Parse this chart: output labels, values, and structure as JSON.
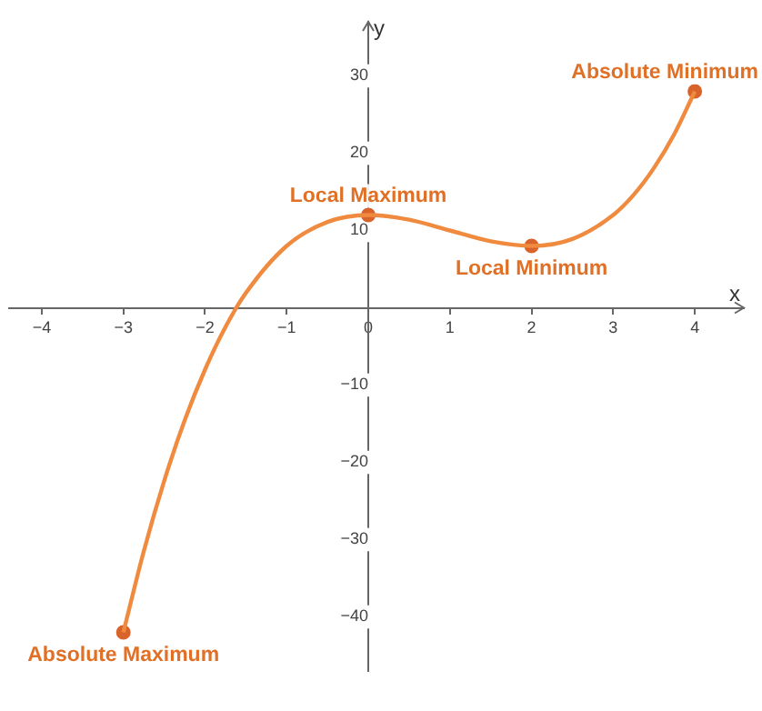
{
  "chart_data": {
    "type": "line",
    "xlabel": "x",
    "ylabel": "y",
    "series": [
      {
        "type": "line",
        "color": "#ef8a3e",
        "marker": "none",
        "x": [
          -3,
          -2.75,
          -2.5,
          -2.25,
          -2,
          -1.75,
          -1.5,
          -1,
          -0.5,
          0,
          0.5,
          1,
          1.5,
          2,
          2.5,
          3,
          3.25,
          3.5,
          3.75,
          4
        ],
        "values": [
          -42,
          -31.5,
          -22.4,
          -14.6,
          -8,
          -2.5,
          1.9,
          8,
          11.1,
          12,
          11.4,
          10,
          8.6,
          8,
          8.9,
          12,
          14.6,
          18.1,
          22.5,
          28
        ]
      },
      {
        "type": "scatter",
        "color": "#d9642b",
        "marker": "circle",
        "x": [
          -3,
          0,
          2,
          4
        ],
        "values": [
          -42,
          12,
          8,
          28
        ]
      }
    ],
    "annotations": [
      {
        "text": "Absolute Maximum",
        "x": -3,
        "y": -42
      },
      {
        "text": "Local Maximum",
        "x": 0,
        "y": 12
      },
      {
        "text": "Local Minimum",
        "x": 2,
        "y": 8
      },
      {
        "text": "Absolute Minimum",
        "x": 4,
        "y": 28
      }
    ],
    "xlim": [
      -4.4,
      4.6
    ],
    "ylim": [
      -47,
      37
    ],
    "xticks": [
      -4,
      -3,
      -2,
      -1,
      0,
      1,
      2,
      3,
      4
    ],
    "yticks": [
      -40,
      -30,
      -20,
      -10,
      10,
      20,
      30
    ],
    "grid": false,
    "legend": false
  }
}
